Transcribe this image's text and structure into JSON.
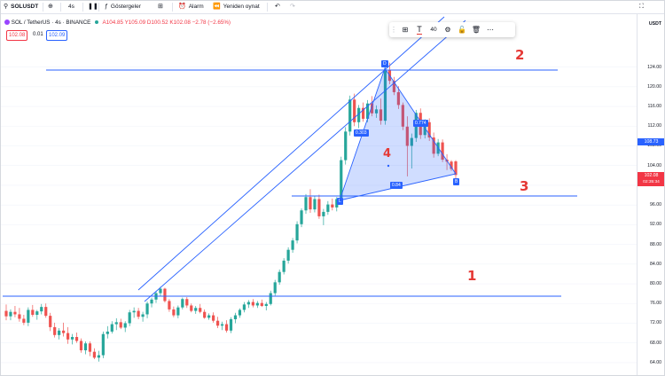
{
  "toolbar": {
    "symbol": "SOLUSDT",
    "interval": "4s",
    "indicators_label": "Göstergeler",
    "alarm_label": "Alarm",
    "replay_label": "Yeniden oynat"
  },
  "legend": {
    "title": "SOL / TetherUS · 4s · BINANCE",
    "open": "A104.85",
    "high": "Y105.09",
    "low": "D100.52",
    "close": "K102.08",
    "change": "−2.78 (−2.65%)",
    "bid_value": "102.08",
    "spread_value": "0.01",
    "ask_value": "102.09"
  },
  "drawing_toolbar": {
    "font_size": "40"
  },
  "price_axis": {
    "currency": "USDT",
    "ticks": [
      "124.00",
      "120.00",
      "116.00",
      "112.00",
      "108.00",
      "104.00",
      "100.00",
      "96.00",
      "92.00",
      "88.00",
      "84.00",
      "80.00",
      "76.00",
      "72.00",
      "68.00",
      "64.00"
    ],
    "label_blue": "108.73",
    "label_red": "102.08",
    "label_countdown": "02:35:34"
  },
  "pattern_labels": {
    "d": "D",
    "l": "L",
    "b": "B",
    "ratio_left": "0.303",
    "ratio_right": "0.774",
    "ratio_bottom": "0.84"
  },
  "annotations": {
    "a1": "1",
    "a2": "2",
    "a3": "3",
    "a4": "4"
  },
  "colors": {
    "up": "#26a69a",
    "down": "#ef5350",
    "drawing": "#2962ff",
    "annotation": "#e53935"
  },
  "chart_data": {
    "type": "candlestick",
    "symbol": "SOL / TetherUS",
    "interval": "4s",
    "ylim": [
      62,
      130
    ],
    "ohlc": [
      [
        74.5,
        75.8,
        72.6,
        73.4
      ],
      [
        73.4,
        74.8,
        72.6,
        74.3
      ],
      [
        74.3,
        75.5,
        73.2,
        73.8
      ],
      [
        73.8,
        75.1,
        72.3,
        72.9
      ],
      [
        72.9,
        73.7,
        71.6,
        72.1
      ],
      [
        72.1,
        75.2,
        71.4,
        74.7
      ],
      [
        74.7,
        75.7,
        73.3,
        73.7
      ],
      [
        73.7,
        74.7,
        72.7,
        74.4
      ],
      [
        74.4,
        75.9,
        73.8,
        75.3
      ],
      [
        75.3,
        76.0,
        73.1,
        73.5
      ],
      [
        73.5,
        74.1,
        70.4,
        71.2
      ],
      [
        71.2,
        72.1,
        69.1,
        69.6
      ],
      [
        69.6,
        71.0,
        68.7,
        70.5
      ],
      [
        70.5,
        72.1,
        69.3,
        70.0
      ],
      [
        70.0,
        71.2,
        67.8,
        68.7
      ],
      [
        68.7,
        69.8,
        67.7,
        69.2
      ],
      [
        69.2,
        70.1,
        68.0,
        68.4
      ],
      [
        68.4,
        68.9,
        66.0,
        66.5
      ],
      [
        66.5,
        68.3,
        65.7,
        67.9
      ],
      [
        67.9,
        68.3,
        65.3,
        66.2
      ],
      [
        66.2,
        66.9,
        64.7,
        65.0
      ],
      [
        65.0,
        66.4,
        64.2,
        65.5
      ],
      [
        65.5,
        70.3,
        64.9,
        69.8
      ],
      [
        69.8,
        71.4,
        68.9,
        70.3
      ],
      [
        70.3,
        72.4,
        69.9,
        71.8
      ],
      [
        71.8,
        73.0,
        70.6,
        72.2
      ],
      [
        72.2,
        72.9,
        70.8,
        71.1
      ],
      [
        71.1,
        72.4,
        70.2,
        72.0
      ],
      [
        72.0,
        74.7,
        71.4,
        74.2
      ],
      [
        74.2,
        75.2,
        73.1,
        74.5
      ],
      [
        74.5,
        75.1,
        72.8,
        73.3
      ],
      [
        73.3,
        74.3,
        72.3,
        73.8
      ],
      [
        73.8,
        76.4,
        73.0,
        76.0
      ],
      [
        76.0,
        77.2,
        75.2,
        76.8
      ],
      [
        76.8,
        78.5,
        76.1,
        78.1
      ],
      [
        78.1,
        79.4,
        77.4,
        79.0
      ],
      [
        79.0,
        79.2,
        76.2,
        76.5
      ],
      [
        76.5,
        76.9,
        74.3,
        74.8
      ],
      [
        74.8,
        75.4,
        73.2,
        73.6
      ],
      [
        73.6,
        75.6,
        73.0,
        75.2
      ],
      [
        75.2,
        77.2,
        74.8,
        76.9
      ],
      [
        76.9,
        77.3,
        75.1,
        75.6
      ],
      [
        75.6,
        76.0,
        74.2,
        74.5
      ],
      [
        74.5,
        75.5,
        73.9,
        75.1
      ],
      [
        75.1,
        75.9,
        74.0,
        74.3
      ],
      [
        74.3,
        74.8,
        72.9,
        73.1
      ],
      [
        73.1,
        74.0,
        72.7,
        73.6
      ],
      [
        73.6,
        74.2,
        72.1,
        72.5
      ],
      [
        72.5,
        73.3,
        71.0,
        71.5
      ],
      [
        71.5,
        72.3,
        70.6,
        71.8
      ],
      [
        71.8,
        72.6,
        70.1,
        70.5
      ],
      [
        70.5,
        73.2,
        70.0,
        72.8
      ],
      [
        72.8,
        74.1,
        72.0,
        73.6
      ],
      [
        73.6,
        75.0,
        73.1,
        74.7
      ],
      [
        74.7,
        76.3,
        74.2,
        75.8
      ],
      [
        75.8,
        76.7,
        75.1,
        76.3
      ],
      [
        76.3,
        76.9,
        75.2,
        75.6
      ],
      [
        75.6,
        76.5,
        75.1,
        76.1
      ],
      [
        76.1,
        76.8,
        75.3,
        75.5
      ],
      [
        75.5,
        76.3,
        74.6,
        75.9
      ],
      [
        75.9,
        78.6,
        75.6,
        78.1
      ],
      [
        78.1,
        80.8,
        77.6,
        80.3
      ],
      [
        80.3,
        82.9,
        79.8,
        82.4
      ],
      [
        82.4,
        85.2,
        81.9,
        84.7
      ],
      [
        84.7,
        87.4,
        84.1,
        86.9
      ],
      [
        86.9,
        89.3,
        86.3,
        88.8
      ],
      [
        88.8,
        92.7,
        88.2,
        92.1
      ],
      [
        92.1,
        95.3,
        91.5,
        94.9
      ],
      [
        94.9,
        98.2,
        94.2,
        97.6
      ],
      [
        97.6,
        99.2,
        94.4,
        95.1
      ],
      [
        95.1,
        97.8,
        94.5,
        97.2
      ],
      [
        97.2,
        98.1,
        93.2,
        93.7
      ],
      [
        93.7,
        95.2,
        91.9,
        94.6
      ],
      [
        94.6,
        96.8,
        94.0,
        96.1
      ],
      [
        96.1,
        97.3,
        94.9,
        95.5
      ],
      [
        95.5,
        97.6,
        94.7,
        97.2
      ],
      [
        97.2,
        105.8,
        96.6,
        105.1
      ],
      [
        105.1,
        111.8,
        104.2,
        110.9
      ],
      [
        110.9,
        118.2,
        110.1,
        117.4
      ],
      [
        117.4,
        118.6,
        112.0,
        112.8
      ],
      [
        112.8,
        116.3,
        111.6,
        115.7
      ],
      [
        115.7,
        116.8,
        112.9,
        113.5
      ],
      [
        113.5,
        117.3,
        112.8,
        116.6
      ],
      [
        116.6,
        118.1,
        114.0,
        114.6
      ],
      [
        114.6,
        116.2,
        113.7,
        115.4
      ],
      [
        115.4,
        117.6,
        112.3,
        113.1
      ],
      [
        113.1,
        124.0,
        112.3,
        123.3
      ],
      [
        123.3,
        124.9,
        120.5,
        121.2
      ],
      [
        121.2,
        122.0,
        118.3,
        118.9
      ],
      [
        118.9,
        120.1,
        115.5,
        116.3
      ],
      [
        116.3,
        116.8,
        111.2,
        111.9
      ],
      [
        111.9,
        114.0,
        101.8,
        108.0
      ],
      [
        108.0,
        110.5,
        103.4,
        109.6
      ],
      [
        109.6,
        115.3,
        108.8,
        114.7
      ],
      [
        114.7,
        115.6,
        109.4,
        110.2
      ],
      [
        110.2,
        113.4,
        109.5,
        112.8
      ],
      [
        112.8,
        113.6,
        109.0,
        109.7
      ],
      [
        109.7,
        110.7,
        105.6,
        106.4
      ],
      [
        106.4,
        109.4,
        105.9,
        108.7
      ],
      [
        108.7,
        109.3,
        104.7,
        105.2
      ],
      [
        105.2,
        106.3,
        103.1,
        104.8
      ],
      [
        104.8,
        105.1,
        102.9,
        103.3
      ],
      [
        104.85,
        105.09,
        100.52,
        102.08
      ]
    ]
  }
}
